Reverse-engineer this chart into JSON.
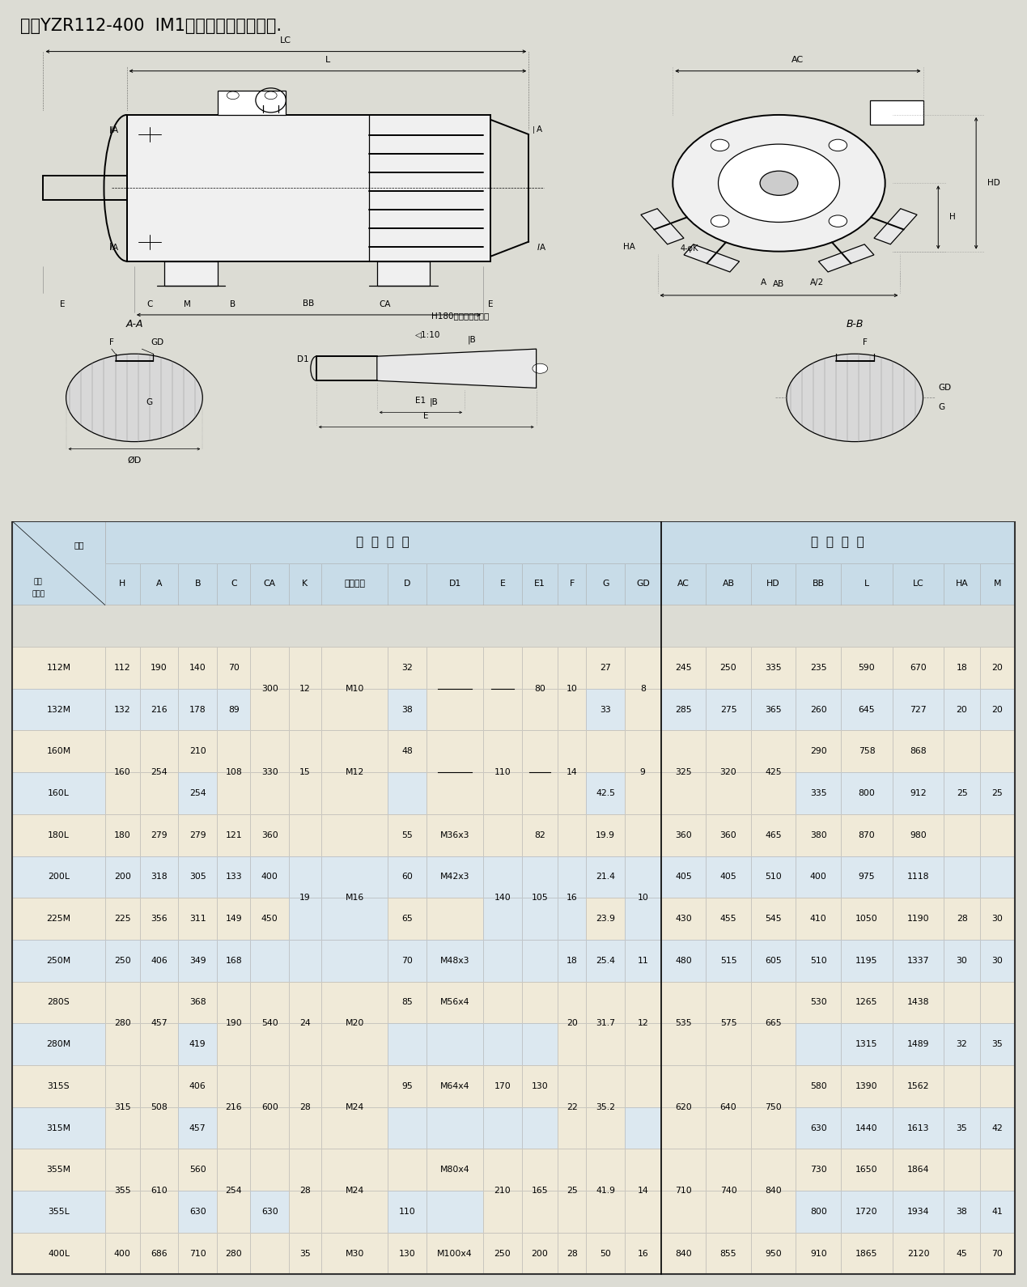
{
  "title": "一、YZR112-400  IM1安装尺寸与外形尺寸.",
  "bg_color": "#dcdcd4",
  "table_header_bg": "#c8dce8",
  "table_row_bg_odd": "#f0ead8",
  "table_row_bg_even": "#dce8f0",
  "table_border": "#aaaaaa",
  "rows_data": [
    [
      "112M",
      "112",
      "190",
      "140",
      "70",
      "300",
      "12",
      "M10",
      "32",
      "",
      "",
      "",
      "10",
      "27",
      "8",
      "245",
      "250",
      "335",
      "235",
      "590",
      "670",
      "18",
      "20"
    ],
    [
      "132M",
      "132",
      "216",
      "178",
      "89",
      "",
      "",
      "",
      "38",
      "",
      "",
      "",
      "",
      "33",
      "",
      "285",
      "275",
      "365",
      "260",
      "645",
      "727",
      "20",
      "20"
    ],
    [
      "160M",
      "160",
      "254",
      "210",
      "108",
      "330",
      "15",
      "M12",
      "48",
      "",
      "110",
      "",
      "14",
      "",
      "9",
      "325",
      "320",
      "425",
      "290",
      "758",
      "868",
      "",
      ""
    ],
    [
      "160L",
      "",
      "",
      "254",
      "",
      "",
      "",
      "",
      "",
      "",
      "",
      "",
      "",
      "42.5",
      "",
      "",
      "",
      "",
      "335",
      "800",
      "912",
      "25",
      "25"
    ],
    [
      "180L",
      "180",
      "279",
      "279",
      "121",
      "360",
      "",
      "",
      "55",
      "M36x3",
      "",
      "82",
      "",
      "19.9",
      "",
      "360",
      "360",
      "465",
      "380",
      "870",
      "980",
      "",
      ""
    ],
    [
      "200L",
      "200",
      "318",
      "305",
      "133",
      "400",
      "19",
      "M16",
      "60",
      "M42x3",
      "140",
      "105",
      "16",
      "21.4",
      "10",
      "405",
      "405",
      "510",
      "400",
      "975",
      "1118",
      "",
      ""
    ],
    [
      "225M",
      "225",
      "356",
      "311",
      "149",
      "450",
      "",
      "",
      "65",
      "",
      "",
      "",
      "",
      "23.9",
      "",
      "430",
      "455",
      "545",
      "410",
      "1050",
      "1190",
      "28",
      "30"
    ],
    [
      "250M",
      "250",
      "406",
      "349",
      "168",
      "",
      "",
      "",
      "70",
      "M48x3",
      "",
      "",
      "18",
      "25.4",
      "11",
      "480",
      "515",
      "605",
      "510",
      "1195",
      "1337",
      "30",
      "30"
    ],
    [
      "280S",
      "280",
      "457",
      "368",
      "190",
      "540",
      "24",
      "M20",
      "85",
      "M56x4",
      "",
      "",
      "20",
      "31.7",
      "12",
      "535",
      "575",
      "665",
      "530",
      "1265",
      "1438",
      "",
      ""
    ],
    [
      "280M",
      "",
      "",
      "419",
      "",
      "",
      "",
      "",
      "",
      "",
      "",
      "",
      "",
      "",
      "",
      "",
      "",
      "",
      "",
      "1315",
      "1489",
      "32",
      "35"
    ],
    [
      "315S",
      "315",
      "508",
      "406",
      "216",
      "600",
      "28",
      "M24",
      "95",
      "M64x4",
      "170",
      "130",
      "22",
      "35.2",
      "",
      "620",
      "640",
      "750",
      "580",
      "1390",
      "1562",
      "",
      ""
    ],
    [
      "315M",
      "",
      "",
      "457",
      "",
      "",
      "",
      "",
      "",
      "",
      "",
      "",
      "",
      "",
      "",
      "",
      "",
      "",
      "630",
      "1440",
      "1613",
      "35",
      "42"
    ],
    [
      "355M",
      "355",
      "610",
      "560",
      "254",
      "",
      "28",
      "M24",
      "",
      "M80x4",
      "210",
      "165",
      "25",
      "41.9",
      "14",
      "710",
      "740",
      "840",
      "730",
      "1650",
      "1864",
      "",
      ""
    ],
    [
      "355L",
      "",
      "",
      "630",
      "",
      "630",
      "",
      "",
      "110",
      "",
      "",
      "",
      "",
      "",
      "",
      "",
      "",
      "",
      "800",
      "1720",
      "1934",
      "38",
      "41"
    ],
    [
      "400L",
      "400",
      "686",
      "710",
      "280",
      "",
      "35",
      "M30",
      "130",
      "M100x4",
      "250",
      "200",
      "28",
      "50",
      "16",
      "840",
      "855",
      "950",
      "910",
      "1865",
      "2120",
      "45",
      "70"
    ]
  ],
  "col_labels": [
    "机座号",
    "H",
    "A",
    "B",
    "C",
    "CA",
    "K",
    "螺栓直径",
    "D",
    "D1",
    "E",
    "E1",
    "F",
    "G",
    "GD",
    "AC",
    "AB",
    "HD",
    "BB",
    "L",
    "LC",
    "HA",
    "M"
  ],
  "span_groups": [
    {
      "col": 5,
      "rows": [
        0,
        1
      ],
      "val": "300"
    },
    {
      "col": 6,
      "rows": [
        0,
        1
      ],
      "val": "12"
    },
    {
      "col": 7,
      "rows": [
        0,
        1
      ],
      "val": "M10"
    },
    {
      "col": 9,
      "rows": [
        0,
        1
      ],
      "val": "-"
    },
    {
      "col": 10,
      "rows": [
        0,
        1
      ],
      "val": "-"
    },
    {
      "col": 11,
      "rows": [
        0,
        1
      ],
      "val": "80"
    },
    {
      "col": 12,
      "rows": [
        0,
        1
      ],
      "val": "10"
    },
    {
      "col": 14,
      "rows": [
        0,
        1
      ],
      "val": "8"
    },
    {
      "col": 1,
      "rows": [
        2,
        3
      ],
      "val": "160"
    },
    {
      "col": 2,
      "rows": [
        2,
        3
      ],
      "val": "254"
    },
    {
      "col": 4,
      "rows": [
        2,
        3
      ],
      "val": "108"
    },
    {
      "col": 5,
      "rows": [
        2,
        3
      ],
      "val": "330"
    },
    {
      "col": 6,
      "rows": [
        2,
        3
      ],
      "val": "15"
    },
    {
      "col": 7,
      "rows": [
        2,
        3
      ],
      "val": "M12"
    },
    {
      "col": 9,
      "rows": [
        2,
        3
      ],
      "val": "-"
    },
    {
      "col": 10,
      "rows": [
        2,
        3
      ],
      "val": "110"
    },
    {
      "col": 11,
      "rows": [
        2,
        3
      ],
      "val": "-"
    },
    {
      "col": 12,
      "rows": [
        2,
        3
      ],
      "val": "14"
    },
    {
      "col": 14,
      "rows": [
        2,
        3
      ],
      "val": "9"
    },
    {
      "col": 15,
      "rows": [
        2,
        3
      ],
      "val": "325"
    },
    {
      "col": 16,
      "rows": [
        2,
        3
      ],
      "val": "320"
    },
    {
      "col": 17,
      "rows": [
        2,
        3
      ],
      "val": "425"
    },
    {
      "col": 6,
      "rows": [
        5,
        6
      ],
      "val": "19"
    },
    {
      "col": 7,
      "rows": [
        5,
        6
      ],
      "val": "M16"
    },
    {
      "col": 10,
      "rows": [
        5,
        6
      ],
      "val": "140"
    },
    {
      "col": 11,
      "rows": [
        5,
        6
      ],
      "val": "105"
    },
    {
      "col": 12,
      "rows": [
        5,
        6
      ],
      "val": "16"
    },
    {
      "col": 14,
      "rows": [
        5,
        6
      ],
      "val": "10"
    },
    {
      "col": 1,
      "rows": [
        8,
        9
      ],
      "val": "280"
    },
    {
      "col": 2,
      "rows": [
        8,
        9
      ],
      "val": "457"
    },
    {
      "col": 4,
      "rows": [
        8,
        9
      ],
      "val": "190"
    },
    {
      "col": 5,
      "rows": [
        8,
        9
      ],
      "val": "540"
    },
    {
      "col": 6,
      "rows": [
        8,
        9
      ],
      "val": "24"
    },
    {
      "col": 7,
      "rows": [
        8,
        9
      ],
      "val": "M20"
    },
    {
      "col": 12,
      "rows": [
        8,
        9
      ],
      "val": "20"
    },
    {
      "col": 13,
      "rows": [
        8,
        9
      ],
      "val": "31.7"
    },
    {
      "col": 14,
      "rows": [
        8,
        9
      ],
      "val": "12"
    },
    {
      "col": 15,
      "rows": [
        8,
        9
      ],
      "val": "535"
    },
    {
      "col": 16,
      "rows": [
        8,
        9
      ],
      "val": "575"
    },
    {
      "col": 17,
      "rows": [
        8,
        9
      ],
      "val": "665"
    },
    {
      "col": 1,
      "rows": [
        10,
        11
      ],
      "val": "315"
    },
    {
      "col": 2,
      "rows": [
        10,
        11
      ],
      "val": "508"
    },
    {
      "col": 4,
      "rows": [
        10,
        11
      ],
      "val": "216"
    },
    {
      "col": 5,
      "rows": [
        10,
        11
      ],
      "val": "600"
    },
    {
      "col": 6,
      "rows": [
        10,
        11
      ],
      "val": "28"
    },
    {
      "col": 7,
      "rows": [
        10,
        11
      ],
      "val": "M24"
    },
    {
      "col": 12,
      "rows": [
        10,
        11
      ],
      "val": "22"
    },
    {
      "col": 13,
      "rows": [
        10,
        11
      ],
      "val": "35.2"
    },
    {
      "col": 15,
      "rows": [
        10,
        11
      ],
      "val": "620"
    },
    {
      "col": 16,
      "rows": [
        10,
        11
      ],
      "val": "640"
    },
    {
      "col": 17,
      "rows": [
        10,
        11
      ],
      "val": "750"
    },
    {
      "col": 1,
      "rows": [
        12,
        13
      ],
      "val": "355"
    },
    {
      "col": 2,
      "rows": [
        12,
        13
      ],
      "val": "610"
    },
    {
      "col": 4,
      "rows": [
        12,
        13
      ],
      "val": "254"
    },
    {
      "col": 6,
      "rows": [
        12,
        13
      ],
      "val": "28"
    },
    {
      "col": 7,
      "rows": [
        12,
        13
      ],
      "val": "M24"
    },
    {
      "col": 10,
      "rows": [
        12,
        13
      ],
      "val": "210"
    },
    {
      "col": 11,
      "rows": [
        12,
        13
      ],
      "val": "165"
    },
    {
      "col": 12,
      "rows": [
        12,
        13
      ],
      "val": "25"
    },
    {
      "col": 13,
      "rows": [
        12,
        13
      ],
      "val": "41.9"
    },
    {
      "col": 14,
      "rows": [
        12,
        13
      ],
      "val": "14"
    },
    {
      "col": 15,
      "rows": [
        12,
        13
      ],
      "val": "710"
    },
    {
      "col": 16,
      "rows": [
        12,
        13
      ],
      "val": "740"
    },
    {
      "col": 17,
      "rows": [
        12,
        13
      ],
      "val": "840"
    }
  ]
}
